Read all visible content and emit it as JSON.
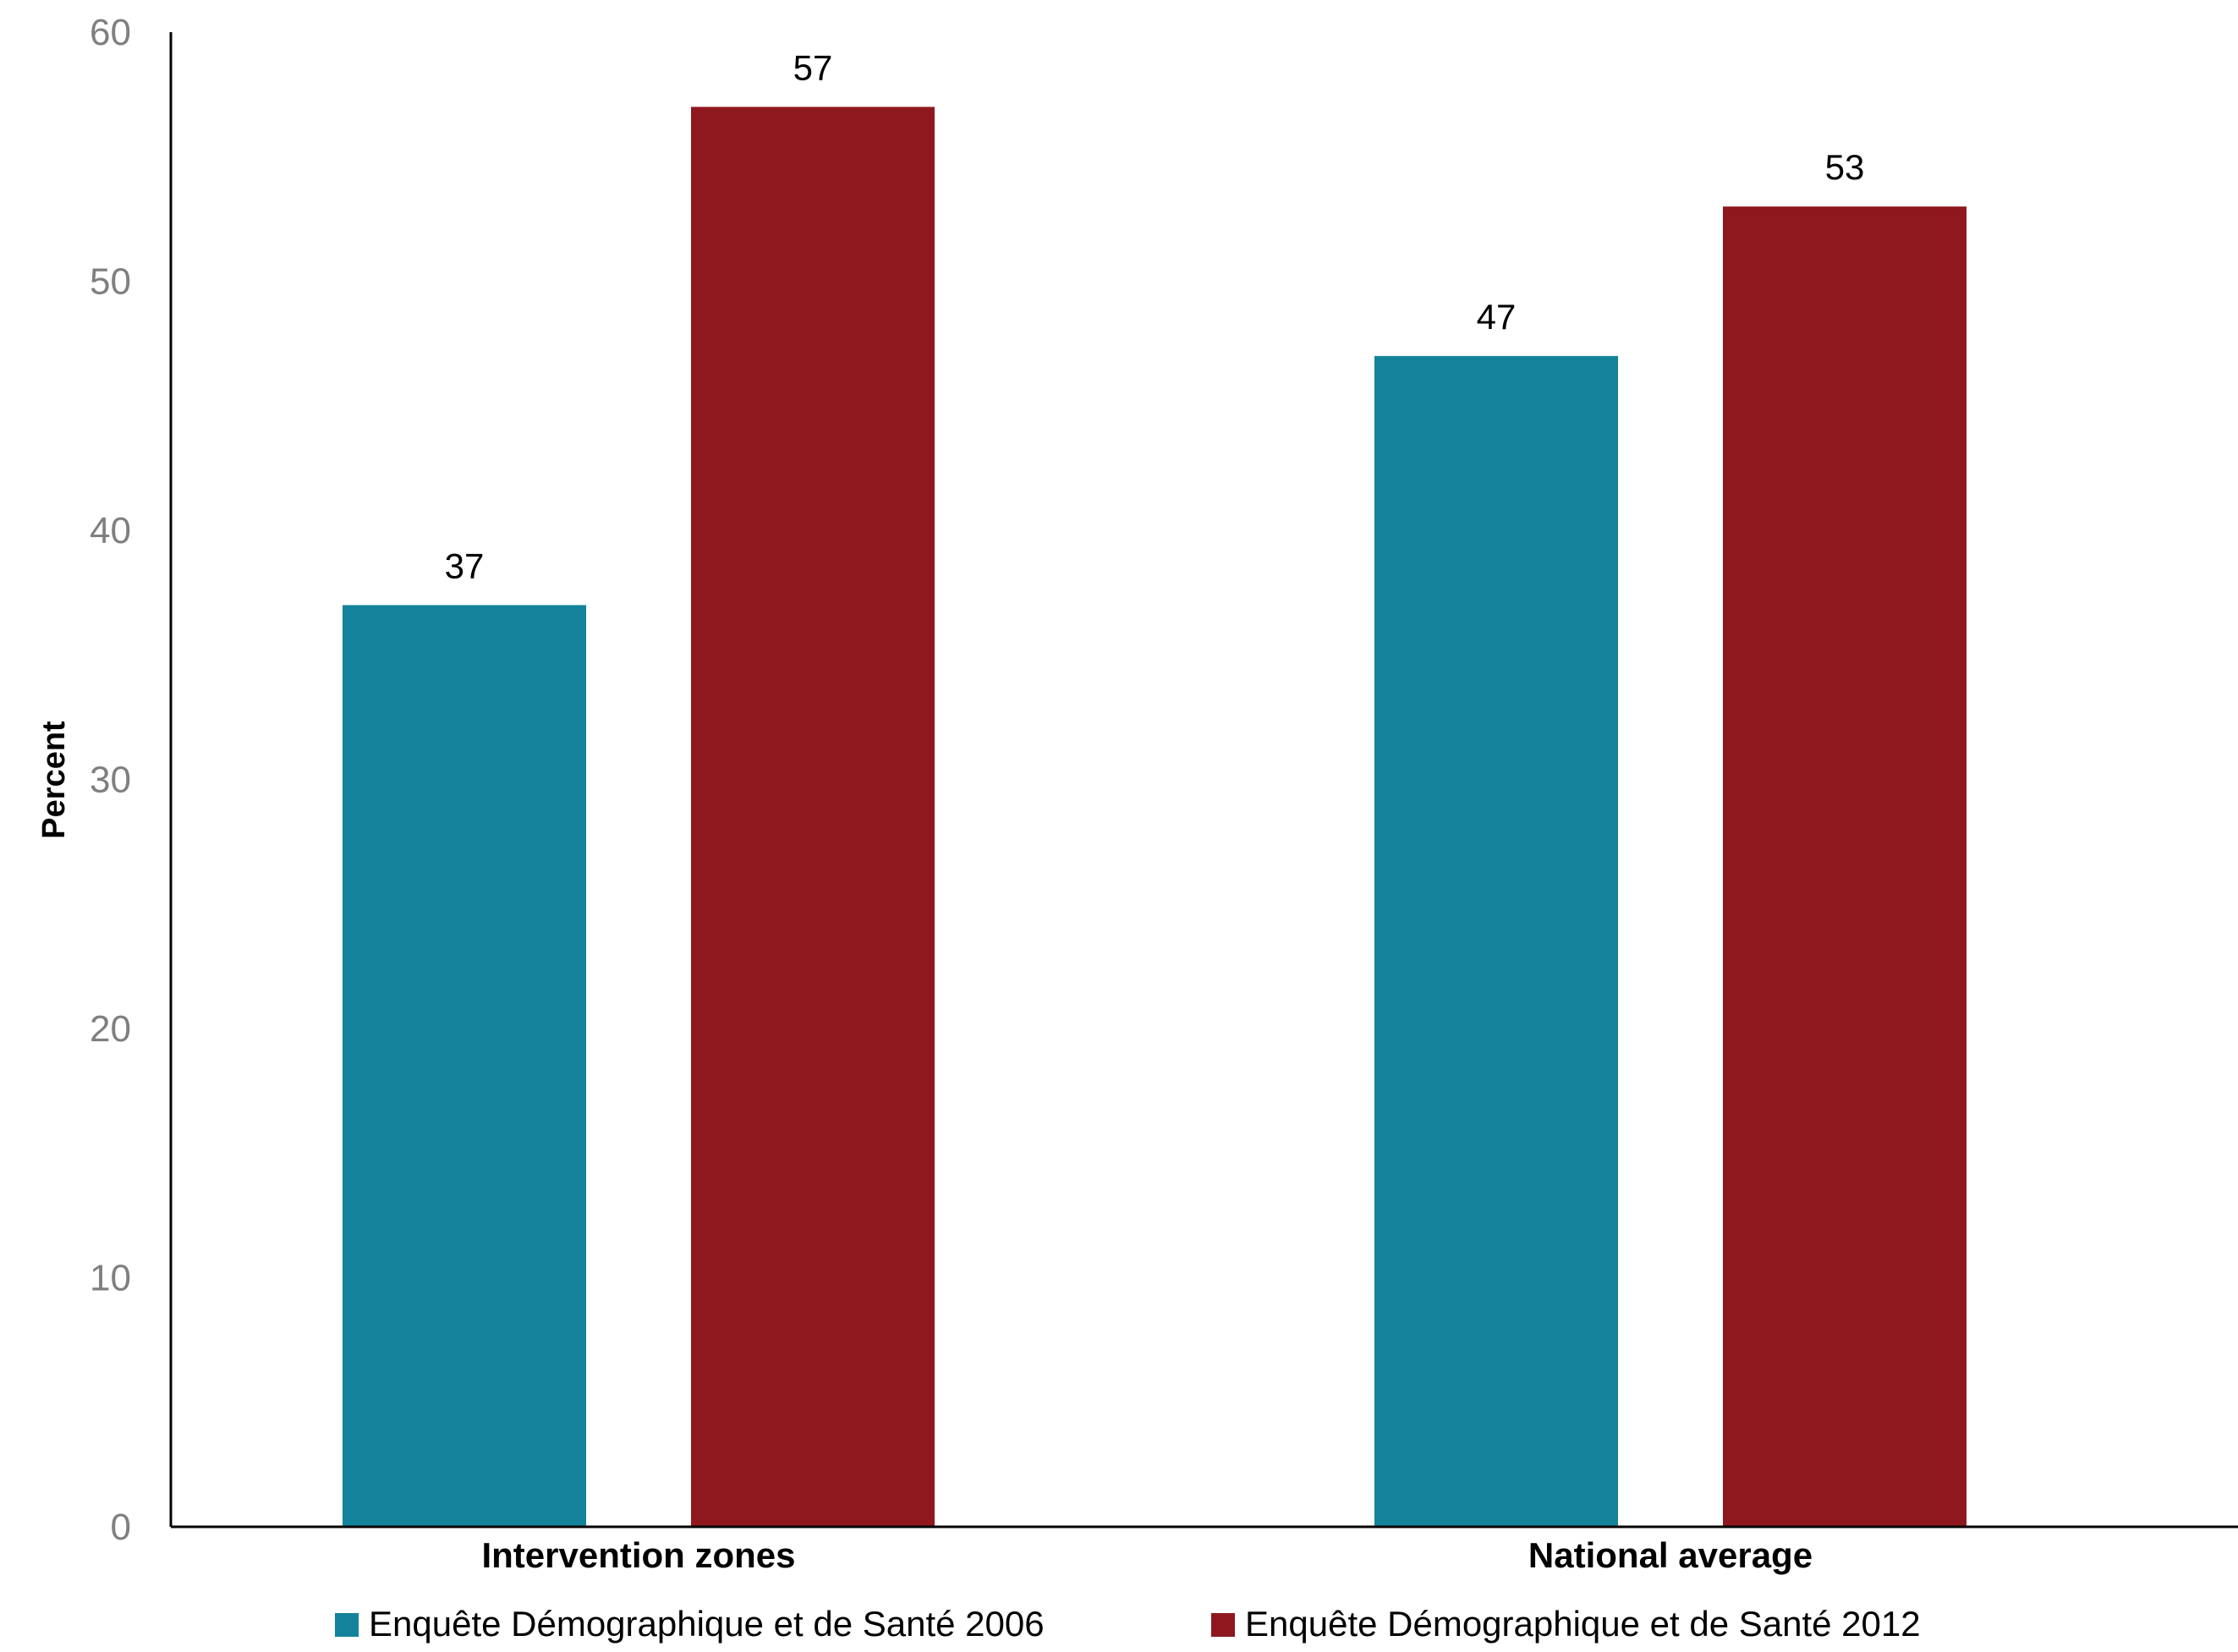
{
  "chart_data": {
    "type": "bar",
    "title": "",
    "xlabel": "",
    "ylabel": "Percent",
    "ylim": [
      0,
      60
    ],
    "yticks": [
      "0",
      "10",
      "20",
      "30",
      "40",
      "50",
      "60"
    ],
    "categories": [
      "Intervention zones",
      "National average"
    ],
    "series": [
      {
        "name": "Enquête Démographique et de Santé 2006",
        "values": [
          37,
          47
        ],
        "color": "#13839b"
      },
      {
        "name": "Enquête Démographique et de Santé 2012",
        "values": [
          57,
          53
        ],
        "color": "#8e181e"
      }
    ],
    "grid": false,
    "legend_position": "bottom"
  }
}
